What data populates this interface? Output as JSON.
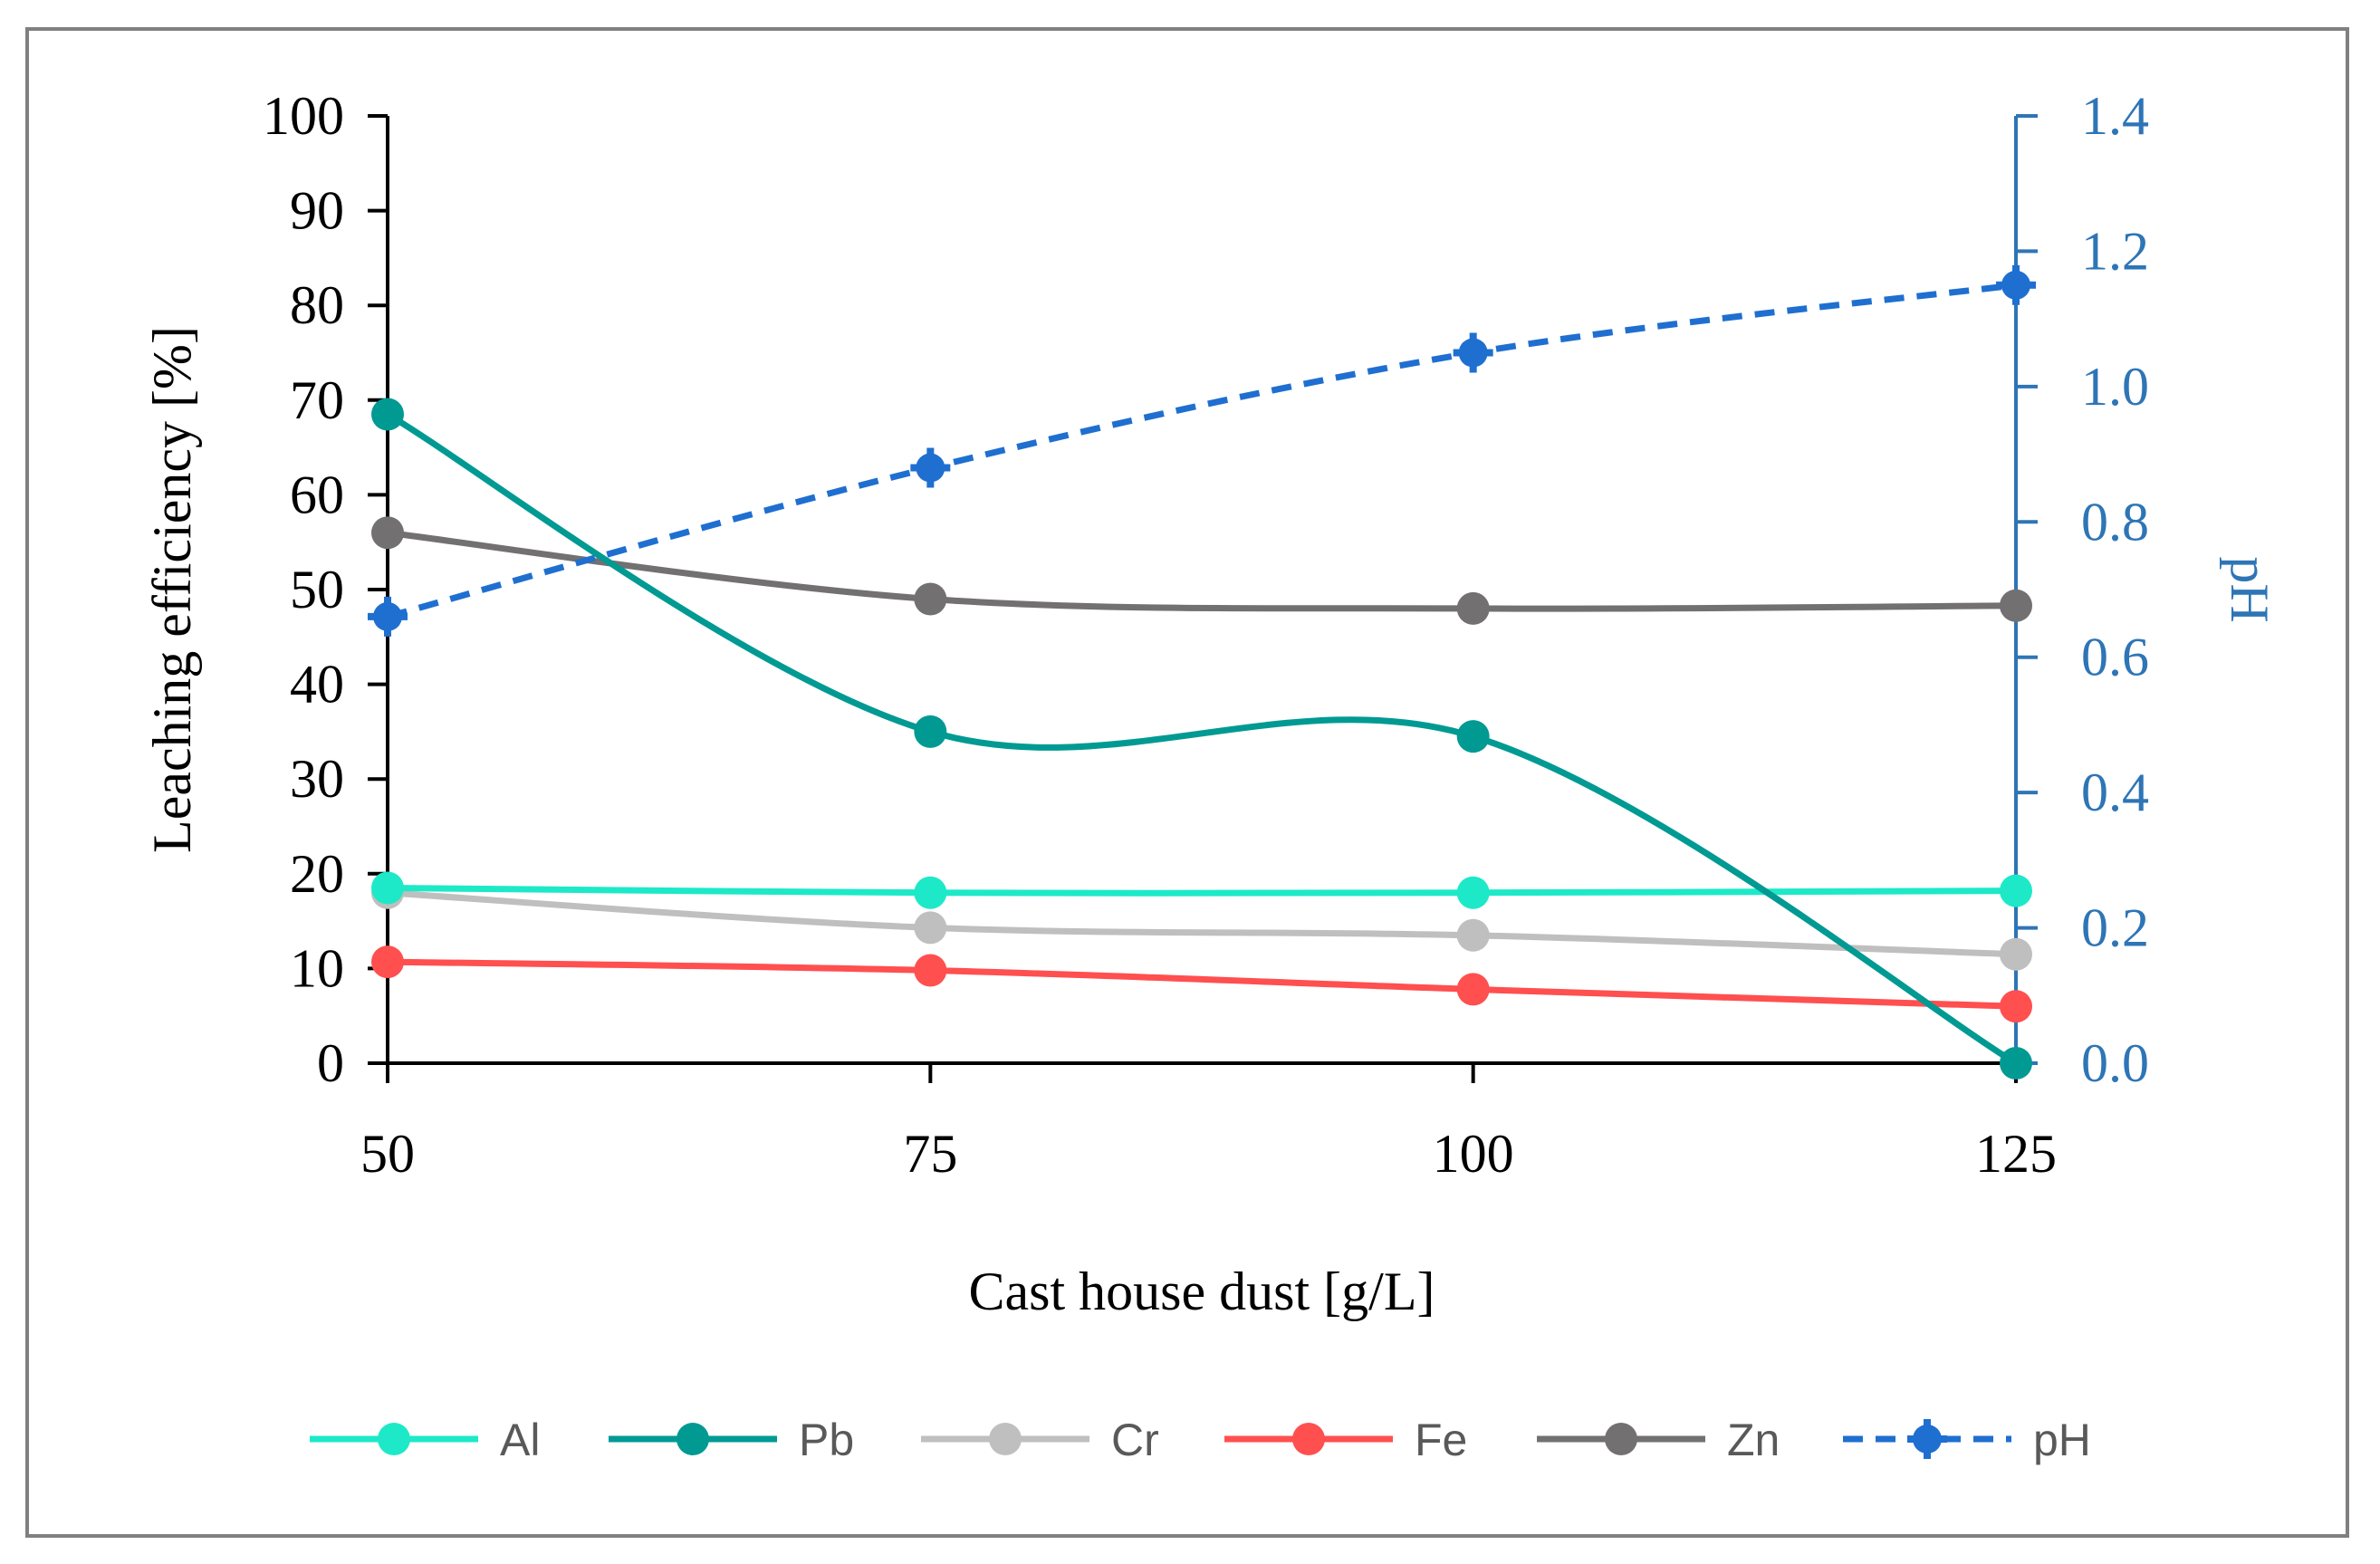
{
  "chart_data": {
    "type": "line",
    "xlabel": "Cast house dust [g/L]",
    "ylabel": "Leaching efficiency [%]",
    "y2label": "pH",
    "categories": [
      "50",
      "75",
      "100",
      "125"
    ],
    "x": [
      50,
      75,
      100,
      125
    ],
    "ylim": [
      0,
      100
    ],
    "yticks": [
      "0",
      "10",
      "20",
      "30",
      "40",
      "50",
      "60",
      "70",
      "80",
      "90",
      "100"
    ],
    "y2lim": [
      0,
      1.4
    ],
    "y2ticks": [
      "0.0",
      "0.2",
      "0.4",
      "0.6",
      "0.8",
      "1.0",
      "1.2",
      "1.4"
    ],
    "legend_position": "bottom",
    "grid": false,
    "series": [
      {
        "name": "Al",
        "axis": "left",
        "color": "#1de9c8",
        "dash": false,
        "values": [
          18.5,
          18.0,
          18.0,
          18.2
        ]
      },
      {
        "name": "Pb",
        "axis": "left",
        "color": "#009a93",
        "dash": false,
        "values": [
          68.5,
          35.0,
          34.5,
          0.0
        ]
      },
      {
        "name": "Cr",
        "axis": "left",
        "color": "#bfbfbf",
        "dash": false,
        "values": [
          18.0,
          14.3,
          13.5,
          11.5
        ]
      },
      {
        "name": "Fe",
        "axis": "left",
        "color": "#ff4f4f",
        "dash": false,
        "values": [
          10.7,
          9.8,
          7.8,
          6.0
        ]
      },
      {
        "name": "Zn",
        "axis": "left",
        "color": "#727070",
        "dash": false,
        "values": [
          56.0,
          49.0,
          48.0,
          48.3
        ]
      },
      {
        "name": "pH",
        "axis": "right",
        "color": "#1f6fd0",
        "dash": true,
        "values": [
          0.66,
          0.88,
          1.05,
          1.15
        ]
      }
    ],
    "axis_colors": {
      "left": "#000000",
      "right": "#2e75b6"
    }
  }
}
